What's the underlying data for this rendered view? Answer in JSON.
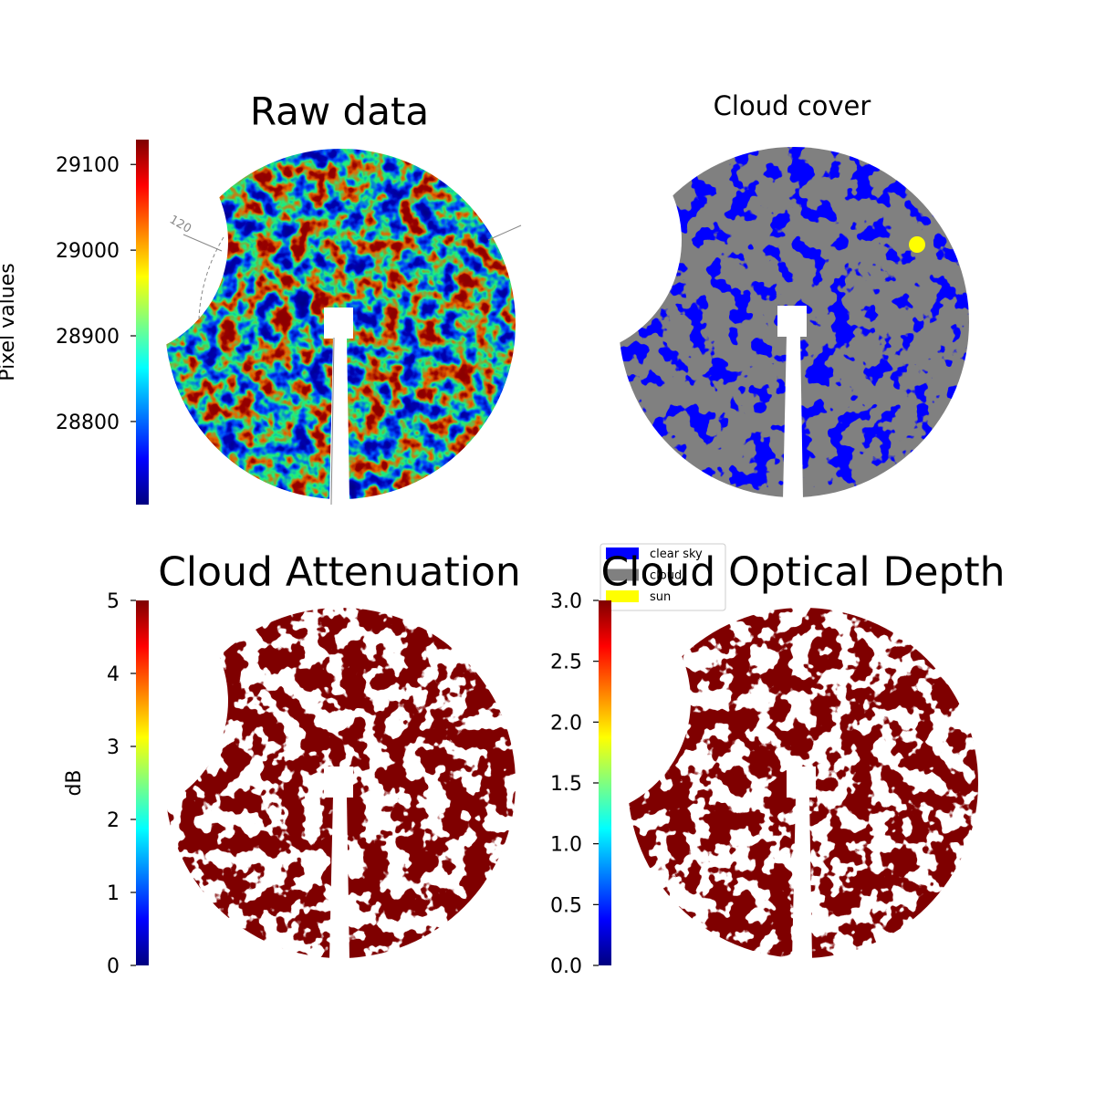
{
  "chart_data": [
    {
      "type": "image",
      "title": "Raw data",
      "colormap": "jet",
      "colorbar": {
        "label": "Pixel values",
        "lim": [
          28703,
          29129
        ],
        "ticks": [
          28800,
          28900,
          29000,
          29100
        ]
      },
      "annotations": [
        "120"
      ]
    },
    {
      "type": "image",
      "title": "Cloud cover",
      "legend": [
        {
          "name": "clear sky",
          "color": "#0000ff"
        },
        {
          "name": "cloud",
          "color": "#808080"
        },
        {
          "name": "sun",
          "color": "#ffff00"
        }
      ]
    },
    {
      "type": "image",
      "title": "Cloud Attenuation",
      "colormap": "jet",
      "colorbar": {
        "label": "dB",
        "lim": [
          0,
          5
        ],
        "ticks": [
          0,
          1,
          2,
          3,
          4,
          5
        ]
      }
    },
    {
      "type": "image",
      "title": "Cloud Optical Depth",
      "colormap": "jet",
      "colorbar": {
        "lim": [
          0,
          3
        ],
        "ticks": [
          {
            "value": 0,
            "label": "0.0"
          },
          {
            "value": 0.5,
            "label": "0.5"
          },
          {
            "value": 1,
            "label": "1.0"
          },
          {
            "value": 1.5,
            "label": "1.5"
          },
          {
            "value": 2,
            "label": "2.0"
          },
          {
            "value": 2.5,
            "label": "2.5"
          },
          {
            "value": 3,
            "label": "3.0"
          }
        ]
      }
    }
  ]
}
